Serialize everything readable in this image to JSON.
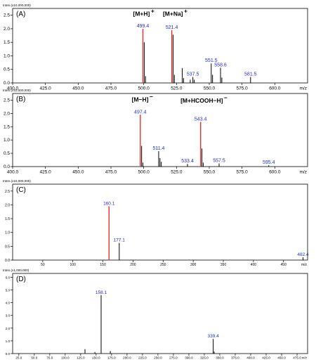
{
  "chart_data": [
    {
      "type": "bar",
      "panel_label": "(A)",
      "y_unit_label": "Inten.(x10,000,000)",
      "x_unit_label": "m/z",
      "xlim": [
        400.0,
        625.0
      ],
      "ylim": [
        0,
        2.75
      ],
      "x_ticks": [
        "400.0",
        "425.0",
        "450.0",
        "475.0",
        "500.0",
        "525.0",
        "550.0",
        "575.0",
        "600.0"
      ],
      "x_tick_values": [
        400,
        425,
        450,
        475,
        500,
        525,
        550,
        575,
        600
      ],
      "y_ticks": [
        "0.0",
        "0.5",
        "1.0",
        "1.5",
        "2.0",
        "2.5"
      ],
      "y_tick_values": [
        0,
        0.5,
        1.0,
        1.5,
        2.0,
        2.5
      ],
      "annotations": [
        {
          "text": "[M+H]",
          "sup": "+",
          "x": 500,
          "y": 2.48
        },
        {
          "text": "[M+Na]",
          "sup": "+",
          "x": 524,
          "y": 2.48
        }
      ],
      "peaks": [
        {
          "x": 499.4,
          "y": 2.0,
          "label": "499.4",
          "color": "#e8302a"
        },
        {
          "x": 500.4,
          "y": 1.5
        },
        {
          "x": 501.4,
          "y": 0.25
        },
        {
          "x": 521.4,
          "y": 1.95,
          "label": "521.4",
          "color": "#e8302a"
        },
        {
          "x": 522.4,
          "y": 1.78
        },
        {
          "x": 523.4,
          "y": 0.3
        },
        {
          "x": 529.4,
          "y": 0.55
        },
        {
          "x": 530.4,
          "y": 0.18
        },
        {
          "x": 535.5,
          "y": 0.12
        },
        {
          "x": 537.5,
          "y": 0.22,
          "label": "537.5"
        },
        {
          "x": 538.5,
          "y": 0.12
        },
        {
          "x": 551.5,
          "y": 0.72,
          "label": "551.5"
        },
        {
          "x": 552.5,
          "y": 0.3
        },
        {
          "x": 558.6,
          "y": 0.56,
          "label": "558.6"
        },
        {
          "x": 559.6,
          "y": 0.2
        },
        {
          "x": 581.5,
          "y": 0.22,
          "label": "581.5"
        }
      ]
    },
    {
      "type": "bar",
      "panel_label": "(B)",
      "y_unit_label": "Inten.(x10,000,000)",
      "x_unit_label": "m/z",
      "xlim": [
        400.0,
        625.0
      ],
      "ylim": [
        0,
        2.75
      ],
      "x_ticks": [
        "400.0",
        "425.0",
        "450.0",
        "475.0",
        "500.0",
        "525.0",
        "550.0",
        "575.0",
        "600.0"
      ],
      "x_tick_values": [
        400,
        425,
        450,
        475,
        500,
        525,
        550,
        575,
        600
      ],
      "y_ticks": [
        "0.0",
        "0.5",
        "1.0",
        "1.5",
        "2.0",
        "2.5"
      ],
      "y_tick_values": [
        0,
        0.5,
        1.0,
        1.5,
        2.0,
        2.5
      ],
      "annotations": [
        {
          "text": "[M−H]",
          "sup": "−",
          "x": 499,
          "y": 2.45
        },
        {
          "text": "[M+HCOOH−H]",
          "sup": "−",
          "x": 546,
          "y": 2.4
        }
      ],
      "peaks": [
        {
          "x": 497.4,
          "y": 1.95,
          "label": "497.4",
          "color": "#e8302a"
        },
        {
          "x": 498.4,
          "y": 0.78
        },
        {
          "x": 499.4,
          "y": 0.15
        },
        {
          "x": 511.4,
          "y": 0.58,
          "label": "511.4"
        },
        {
          "x": 512.4,
          "y": 0.32
        },
        {
          "x": 513.4,
          "y": 0.18
        },
        {
          "x": 533.4,
          "y": 0.1,
          "label": "533.4"
        },
        {
          "x": 543.4,
          "y": 1.68,
          "label": "543.4",
          "color": "#e8302a"
        },
        {
          "x": 544.4,
          "y": 0.68
        },
        {
          "x": 545.4,
          "y": 0.15
        },
        {
          "x": 557.5,
          "y": 0.12,
          "label": "557.5"
        },
        {
          "x": 595.4,
          "y": 0.05,
          "label": "595.4"
        }
      ]
    },
    {
      "type": "bar",
      "panel_label": "(C)",
      "y_unit_label": "Inten.(x10,000,000)",
      "x_unit_label": "m/z",
      "xlim": [
        0,
        490
      ],
      "ylim": [
        0,
        2.75
      ],
      "x_ticks": [
        "50",
        "100",
        "150",
        "200",
        "250",
        "300",
        "350",
        "400",
        "450"
      ],
      "x_tick_values": [
        50,
        100,
        150,
        200,
        250,
        300,
        350,
        400,
        450
      ],
      "y_ticks": [
        "0.0",
        "0.5",
        "1.0",
        "1.5",
        "2.0",
        "2.5"
      ],
      "y_tick_values": [
        0,
        0.5,
        1.0,
        1.5,
        2.0,
        2.5
      ],
      "annotations": [],
      "peaks": [
        {
          "x": 160.1,
          "y": 1.95,
          "label": "160.1",
          "color": "#e8302a"
        },
        {
          "x": 177.1,
          "y": 0.62,
          "label": "177.1"
        },
        {
          "x": 482.4,
          "y": 0.1,
          "label": "482.4"
        }
      ]
    },
    {
      "type": "bar",
      "panel_label": "(D)",
      "y_unit_label": "Inten.(x1,000,000)",
      "x_unit_label": "m/z",
      "xlim": [
        15,
        492
      ],
      "ylim": [
        0,
        6.3
      ],
      "x_ticks": [
        "25.0",
        "50.0",
        "75.0",
        "100.0",
        "125.0",
        "150.0",
        "175.0",
        "200.0",
        "225.0",
        "250.0",
        "275.0",
        "300.0",
        "325.0",
        "350.0",
        "375.0",
        "400.0",
        "425.0",
        "450.0",
        "475.0"
      ],
      "x_tick_values": [
        25,
        50,
        75,
        100,
        125,
        150,
        175,
        200,
        225,
        250,
        275,
        300,
        325,
        350,
        375,
        400,
        425,
        450,
        475
      ],
      "y_ticks": [
        "0.0",
        "1.0",
        "2.0",
        "3.0",
        "4.0",
        "5.0",
        "6.0"
      ],
      "y_tick_values": [
        0,
        1,
        2,
        3,
        4,
        5,
        6
      ],
      "annotations": [],
      "peaks": [
        {
          "x": 132.0,
          "y": 0.35
        },
        {
          "x": 148.0,
          "y": 0.12
        },
        {
          "x": 158.1,
          "y": 4.6,
          "label": "158.1"
        },
        {
          "x": 173.0,
          "y": 0.2
        },
        {
          "x": 339.4,
          "y": 1.15,
          "label": "339.4"
        },
        {
          "x": 341.0,
          "y": 0.15
        }
      ]
    }
  ]
}
